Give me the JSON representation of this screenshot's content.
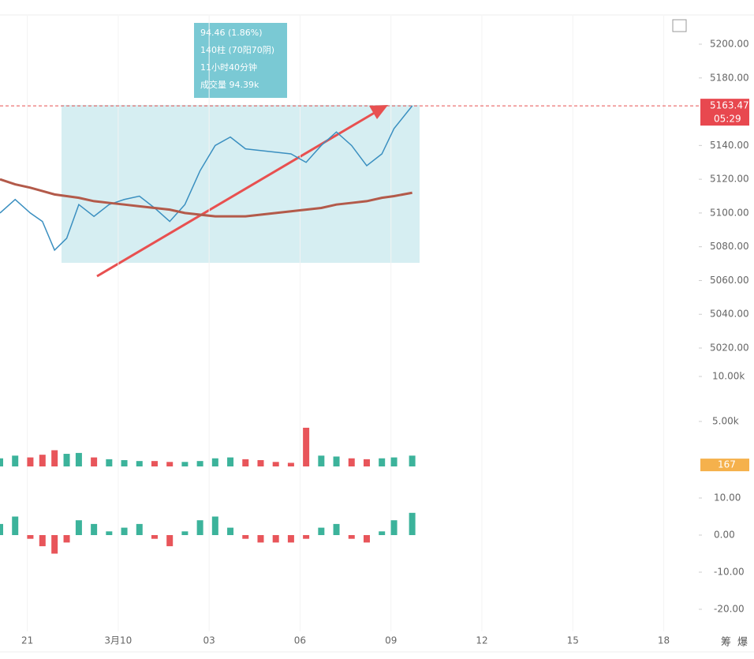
{
  "chart_data": {
    "type": "candlestick",
    "tooltip": [
      "94.46 (1.86%)",
      "140柱 (70阳70阴)",
      "11小时40分钟",
      "成交量 94.39k"
    ],
    "last_price": 5163.47,
    "countdown": "05:29",
    "last_volume": 167,
    "xlim": [
      20.1,
      43
    ],
    "xticks": [
      {
        "value": 21,
        "label": "21"
      },
      {
        "value": 24,
        "label": "3月10"
      },
      {
        "value": 27,
        "label": "03"
      },
      {
        "value": 30,
        "label": "06"
      },
      {
        "value": 33,
        "label": "09"
      },
      {
        "value": 36,
        "label": "12"
      },
      {
        "value": 39,
        "label": "15"
      },
      {
        "value": 42,
        "label": "18"
      }
    ],
    "x": [
      20.1,
      20.6,
      21.1,
      21.5,
      21.9,
      22.3,
      22.7,
      23.2,
      23.7,
      24.2,
      24.7,
      25.2,
      25.7,
      26.2,
      26.7,
      27.2,
      27.7,
      28.2,
      28.7,
      29.2,
      29.7,
      30.2,
      30.7,
      31.2,
      31.7,
      32.2,
      32.7,
      33.1,
      33.7
    ],
    "ylim": [
      5012,
      5212
    ],
    "yticks": [
      {
        "value": 5200,
        "label": "5200.00"
      },
      {
        "value": 5180,
        "label": "5180.00"
      },
      {
        "value": 5140,
        "label": "5140.00"
      },
      {
        "value": 5120,
        "label": "5120.00"
      },
      {
        "value": 5100,
        "label": "5100.00"
      },
      {
        "value": 5080,
        "label": "5080.00"
      },
      {
        "value": 5060,
        "label": "5060.00"
      },
      {
        "value": 5040,
        "label": "5040.00"
      },
      {
        "value": 5020,
        "label": "5020.00"
      }
    ],
    "series": [
      {
        "color": "#3a8fc0",
        "values": [
          5100,
          5108,
          5100,
          5095,
          5078,
          5085,
          5105,
          5098,
          5105,
          5108,
          5110,
          5103,
          5095,
          5105,
          5125,
          5140,
          5145,
          5138,
          5137,
          5136,
          5135,
          5130,
          5140,
          5148,
          5140,
          5128,
          5135,
          5150,
          5163.47
        ]
      },
      {
        "color": "#b35a4a",
        "values": [
          5120,
          5117,
          5115,
          5113,
          5111,
          5110,
          5109,
          5107,
          5106,
          5105,
          5104,
          5103,
          5102,
          5100,
          5099,
          5098,
          5098,
          5098,
          5099,
          5100,
          5101,
          5102,
          5103,
          5105,
          5106,
          5107,
          5109,
          5110,
          5112
        ]
      }
    ],
    "volume_lim": [
      0,
      12000
    ],
    "volume_ticks": [
      {
        "value": 10000,
        "label": "10.00k"
      },
      {
        "value": 5000,
        "label": "5.00k"
      }
    ],
    "volume": [
      900,
      1200,
      1000,
      1300,
      1800,
      1400,
      1500,
      1000,
      800,
      700,
      600,
      600,
      500,
      500,
      600,
      900,
      1000,
      800,
      700,
      500,
      400,
      4300,
      1200,
      1100,
      900,
      800,
      900,
      1000,
      1200
    ],
    "macd_lim": [
      -23,
      13
    ],
    "macd_ticks": [
      {
        "value": 10,
        "label": "10.00"
      },
      {
        "value": 0,
        "label": "0.00"
      },
      {
        "value": -10,
        "label": "-10.00"
      },
      {
        "value": -20,
        "label": "-20.00"
      }
    ],
    "macd": [
      3,
      5,
      -1,
      -3,
      -5,
      -2,
      4,
      3,
      1,
      2,
      3,
      -1,
      -3,
      1,
      4,
      5,
      2,
      -1,
      -2,
      -2,
      -2,
      -1,
      2,
      3,
      -1,
      -2,
      1,
      4,
      6
    ],
    "up_color": "#3cb39b",
    "down_color": "#e8555a",
    "corner_labels": [
      "筹",
      "爆"
    ]
  }
}
